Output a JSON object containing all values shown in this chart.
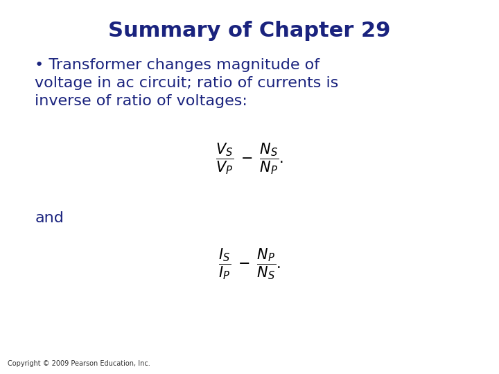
{
  "title": "Summary of Chapter 29",
  "title_color": "#1a237e",
  "title_fontsize": 22,
  "title_bold": true,
  "bullet_text": "• Transformer changes magnitude of\nvoltage in ac circuit; ratio of currents is\ninverse of ratio of voltages:",
  "bullet_color": "#1a237e",
  "bullet_fontsize": 16,
  "and_text": "and",
  "and_color": "#1a237e",
  "and_fontsize": 16,
  "eq1_latex": "$\\dfrac{V_S}{V_P}\\; =\\; \\dfrac{N_S}{N_P}.$",
  "eq2_latex": "$\\dfrac{I_S}{I_P}\\; =\\; \\dfrac{N_P}{N_S}.$",
  "eq_color": "#000000",
  "eq_fontsize": 15,
  "copyright": "Copyright © 2009 Pearson Education, Inc.",
  "copyright_fontsize": 7,
  "copyright_color": "#333333",
  "bg_color": "#ffffff",
  "fig_width": 7.2,
  "fig_height": 5.4,
  "dpi": 100
}
